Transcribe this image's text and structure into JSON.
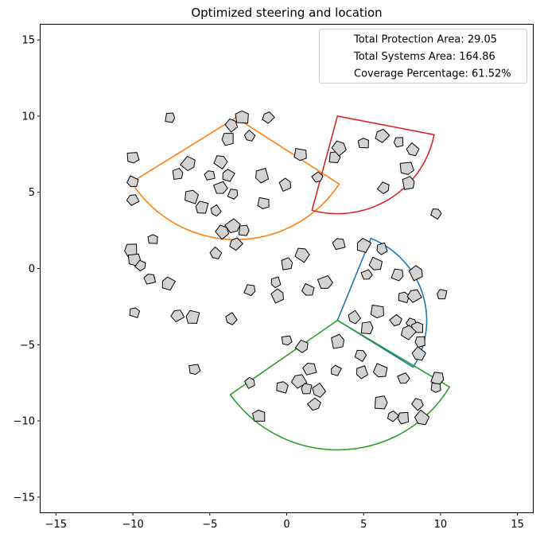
{
  "chart_data": {
    "type": "scatter",
    "title": "Optimized steering and location",
    "xlabel": "",
    "ylabel": "",
    "xlim": [
      -16,
      16
    ],
    "ylim": [
      -16,
      16
    ],
    "xticks": [
      -15,
      -10,
      -5,
      0,
      5,
      10,
      15
    ],
    "yticks": [
      -15,
      -10,
      -5,
      0,
      5,
      10,
      15
    ],
    "grid": false,
    "legend_position": "top-right",
    "legend": [
      "Total Protection Area: 29.05",
      "Total Systems Area: 164.86",
      "Coverage Percentage: 61.52%"
    ],
    "sectors": [
      {
        "color": "#ff7f0e",
        "center": [
          -3.3,
          9.9
        ],
        "radius": 8.0,
        "start_deg": 212,
        "end_deg": 327
      },
      {
        "color": "#d62728",
        "center": [
          3.3,
          10.0
        ],
        "radius": 6.4,
        "start_deg": 255,
        "end_deg": 349
      },
      {
        "color": "#1f77b4",
        "center": [
          3.3,
          -3.4
        ],
        "radius": 5.8,
        "start_deg": -32,
        "end_deg": 68
      },
      {
        "color": "#2ca02c",
        "center": [
          3.3,
          -3.4
        ],
        "radius": 8.5,
        "start_deg": 215,
        "end_deg": 329
      }
    ],
    "systems": [
      [
        -7.6,
        9.9
      ],
      [
        -3.6,
        9.4
      ],
      [
        -2.9,
        9.9
      ],
      [
        -1.2,
        9.9
      ],
      [
        -3.8,
        8.5
      ],
      [
        -2.4,
        8.7
      ],
      [
        -10.0,
        7.3
      ],
      [
        -6.4,
        6.9
      ],
      [
        -7.1,
        6.2
      ],
      [
        -4.3,
        7.0
      ],
      [
        -5.0,
        6.1
      ],
      [
        -3.8,
        6.1
      ],
      [
        -1.6,
        6.1
      ],
      [
        -10.0,
        5.7
      ],
      [
        -4.3,
        5.3
      ],
      [
        -3.5,
        4.9
      ],
      [
        -0.1,
        5.5
      ],
      [
        -6.2,
        4.7
      ],
      [
        -10.0,
        4.5
      ],
      [
        -5.5,
        4.0
      ],
      [
        -4.6,
        3.8
      ],
      [
        -1.5,
        4.3
      ],
      [
        -3.5,
        2.8
      ],
      [
        -2.8,
        2.5
      ],
      [
        -4.2,
        2.4
      ],
      [
        -8.7,
        1.9
      ],
      [
        -3.3,
        1.6
      ],
      [
        -10.1,
        1.2
      ],
      [
        -4.6,
        1.0
      ],
      [
        -9.9,
        0.6
      ],
      [
        -9.5,
        0.2
      ],
      [
        0.0,
        0.3
      ],
      [
        1.0,
        0.9
      ],
      [
        -8.9,
        -0.7
      ],
      [
        -7.7,
        -1.0
      ],
      [
        -0.7,
        -0.9
      ],
      [
        1.4,
        -1.4
      ],
      [
        2.5,
        -0.9
      ],
      [
        -2.4,
        -1.4
      ],
      [
        -0.6,
        -1.8
      ],
      [
        -9.9,
        -2.9
      ],
      [
        -7.1,
        -3.1
      ],
      [
        -6.1,
        -3.2
      ],
      [
        -3.6,
        -3.3
      ],
      [
        0.9,
        7.5
      ],
      [
        2.0,
        6.0
      ],
      [
        3.1,
        7.3
      ],
      [
        3.4,
        7.9
      ],
      [
        5.0,
        8.2
      ],
      [
        6.2,
        8.7
      ],
      [
        7.3,
        8.3
      ],
      [
        8.2,
        7.8
      ],
      [
        7.8,
        6.6
      ],
      [
        6.3,
        5.3
      ],
      [
        7.9,
        5.6
      ],
      [
        9.7,
        3.6
      ],
      [
        3.4,
        1.6
      ],
      [
        5.0,
        1.5
      ],
      [
        6.2,
        1.3
      ],
      [
        5.8,
        0.3
      ],
      [
        5.2,
        -0.4
      ],
      [
        7.2,
        -0.4
      ],
      [
        8.4,
        -0.3
      ],
      [
        7.6,
        -1.9
      ],
      [
        8.3,
        -1.8
      ],
      [
        10.1,
        -1.7
      ],
      [
        4.4,
        -3.2
      ],
      [
        5.9,
        -2.8
      ],
      [
        7.1,
        -3.4
      ],
      [
        5.2,
        -3.9
      ],
      [
        8.1,
        -3.6
      ],
      [
        8.5,
        -3.9
      ],
      [
        7.9,
        -4.2
      ],
      [
        8.7,
        -4.8
      ],
      [
        8.6,
        -5.6
      ],
      [
        0.0,
        -4.7
      ],
      [
        1.0,
        -5.1
      ],
      [
        3.3,
        -4.8
      ],
      [
        4.8,
        -5.7
      ],
      [
        1.5,
        -6.6
      ],
      [
        3.2,
        -6.7
      ],
      [
        4.9,
        -6.8
      ],
      [
        6.1,
        -6.7
      ],
      [
        7.6,
        -7.2
      ],
      [
        9.8,
        -7.2
      ],
      [
        -2.4,
        -7.5
      ],
      [
        -0.3,
        -7.8
      ],
      [
        0.8,
        -7.4
      ],
      [
        1.3,
        -7.9
      ],
      [
        2.1,
        -8.0
      ],
      [
        9.7,
        -7.8
      ],
      [
        1.8,
        -8.9
      ],
      [
        6.1,
        -8.8
      ],
      [
        8.5,
        -8.9
      ],
      [
        -1.8,
        -9.7
      ],
      [
        6.9,
        -9.7
      ],
      [
        7.6,
        -9.8
      ],
      [
        8.8,
        -9.8
      ],
      [
        -6.0,
        -6.6
      ]
    ]
  }
}
